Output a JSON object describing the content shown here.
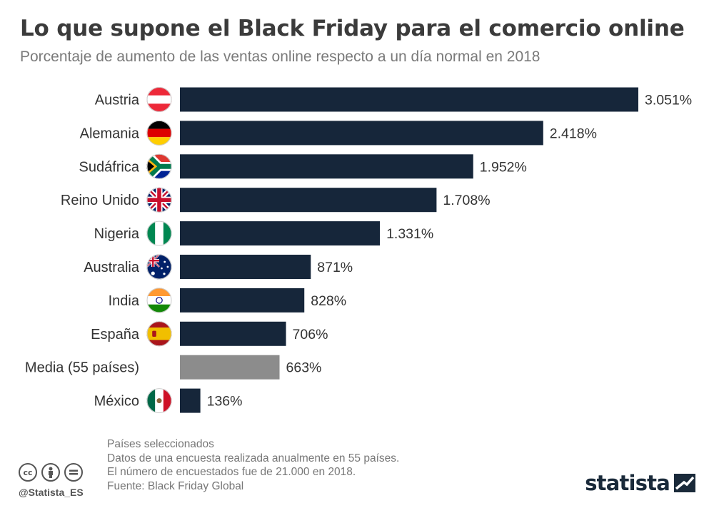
{
  "header": {
    "title": "Lo que supone el Black Friday para el comercio online",
    "subtitle": "Porcentaje de aumento de las ventas online respecto a un día normal en 2018"
  },
  "chart_data": {
    "type": "bar",
    "orientation": "horizontal",
    "title": "Lo que supone el Black Friday para el comercio online",
    "subtitle": "Porcentaje de aumento de las ventas online respecto a un día normal en 2018",
    "categories": [
      "Austria",
      "Alemania",
      "Sudáfrica",
      "Reino Unido",
      "Nigeria",
      "Australia",
      "India",
      "España",
      "Media (55 países)",
      "México"
    ],
    "values": [
      3051,
      2418,
      1952,
      1708,
      1331,
      871,
      828,
      706,
      663,
      136
    ],
    "value_labels": [
      "3.051%",
      "2.418%",
      "1.952%",
      "1.708%",
      "1.331%",
      "871%",
      "828%",
      "706%",
      "663%",
      "136%"
    ],
    "flags": [
      "austria",
      "germany",
      "south-africa",
      "united-kingdom",
      "nigeria",
      "australia",
      "india",
      "spain",
      "",
      "mexico"
    ],
    "highlight_index": 8,
    "colors": {
      "bar": "#16263a",
      "highlight": "#8c8c8c"
    },
    "xlabel": "",
    "ylabel": "",
    "xlim": [
      0,
      3051
    ],
    "grid": false,
    "legend": "none"
  },
  "footer": {
    "notes": [
      "Países seleccionados",
      "Datos de una encuesta realizada anualmente en 55 países.",
      "El número de encuestados fue de 21.000 en 2018.",
      "Fuente: Black Friday Global"
    ],
    "handle": "@Statista_ES",
    "license_icons": [
      "cc-icon",
      "person-icon",
      "equals-icon"
    ],
    "brand": "statista"
  }
}
